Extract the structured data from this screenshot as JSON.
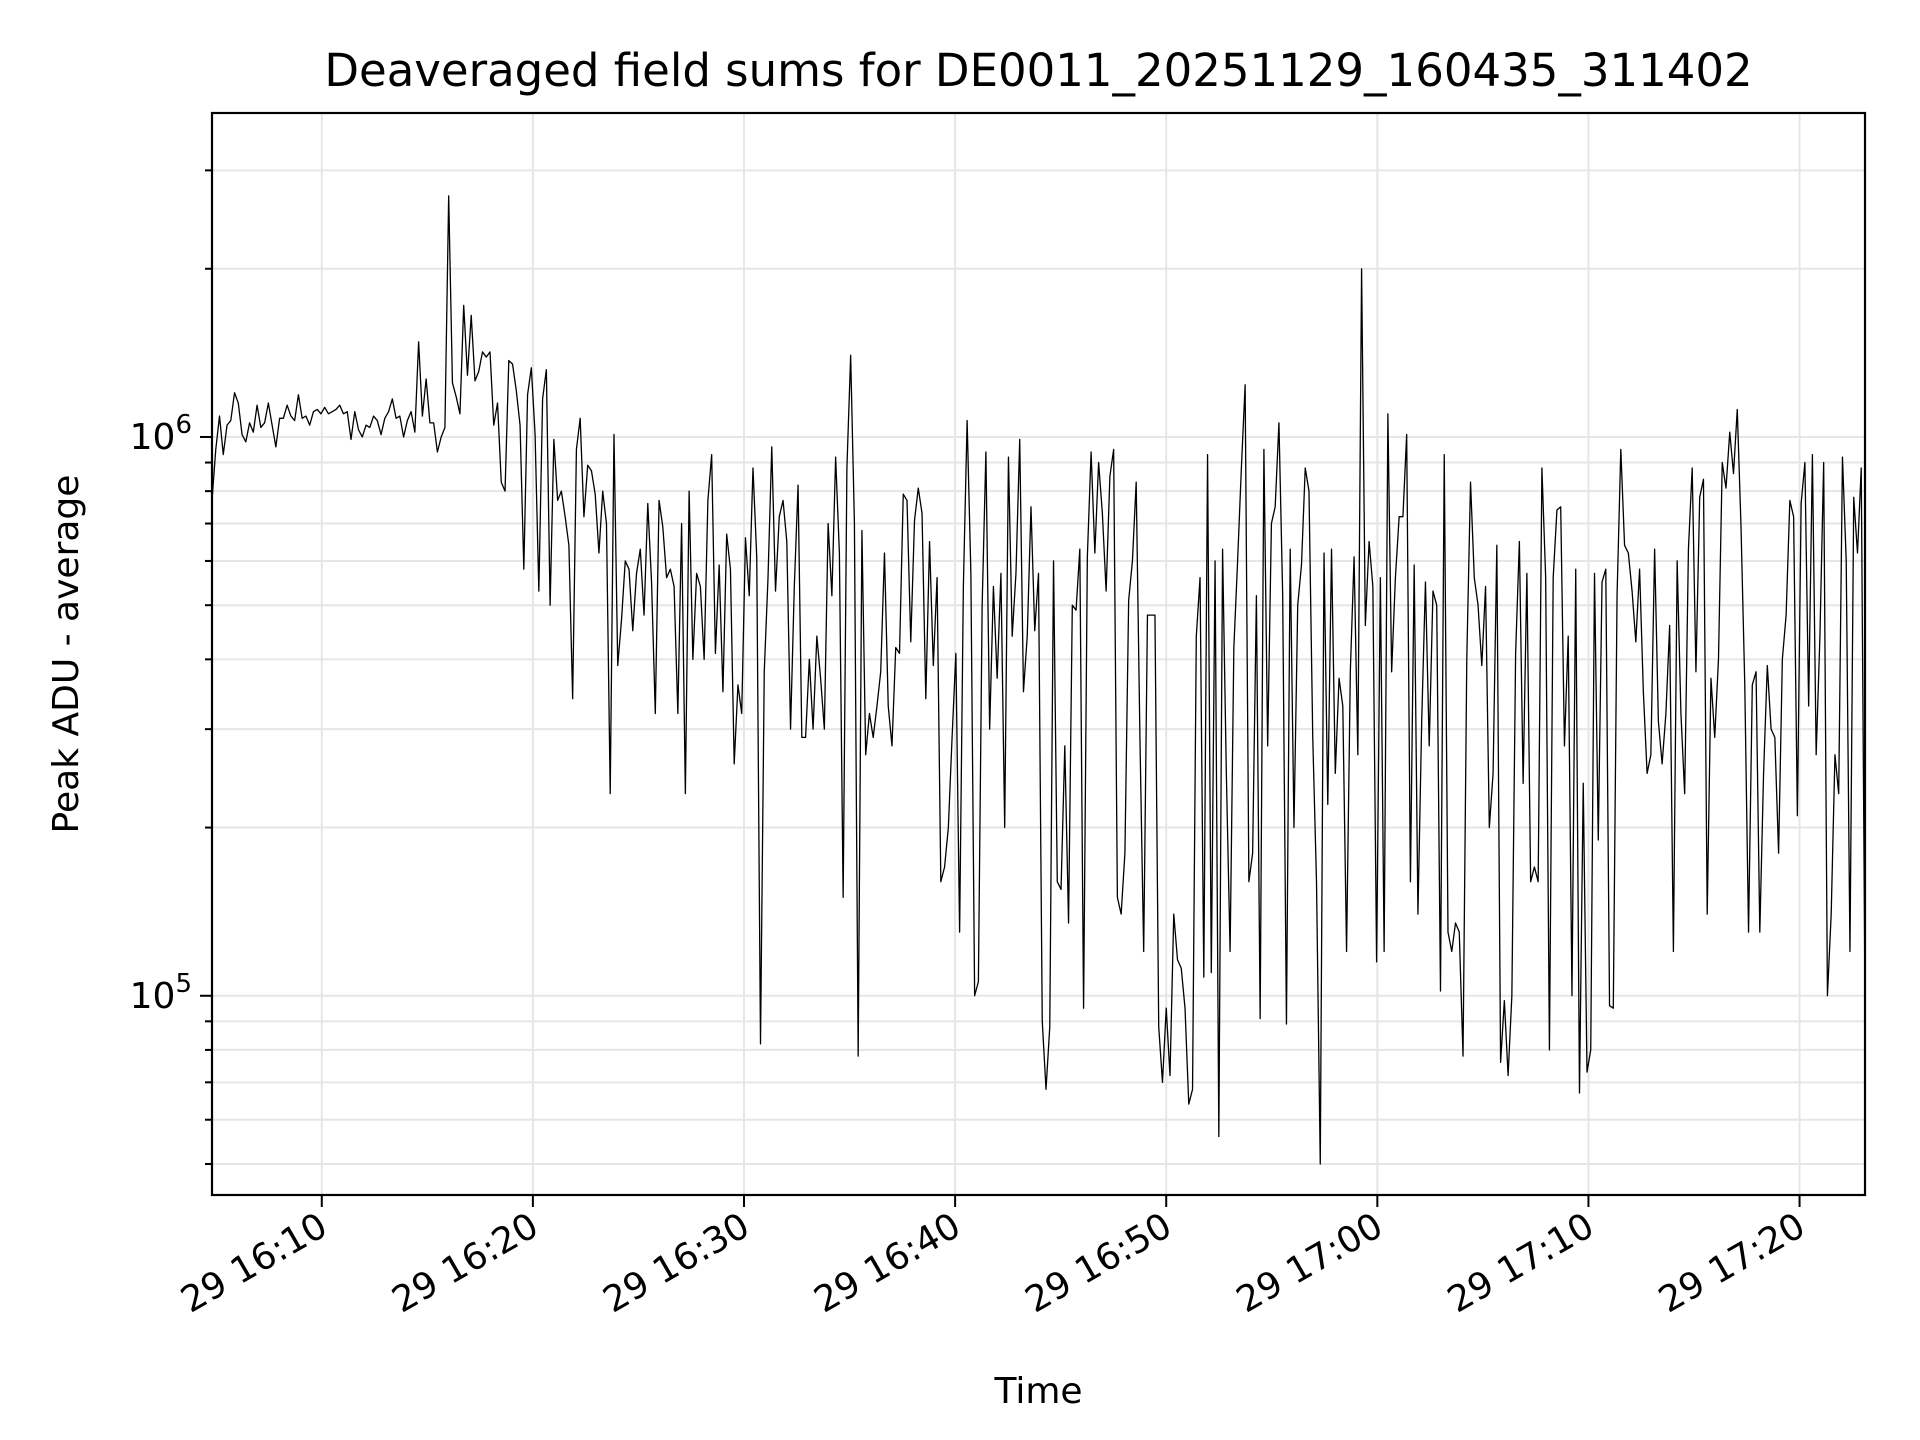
{
  "chart_data": {
    "type": "line",
    "title": "Deaveraged field sums for DE0011_20251129_160435_311402",
    "xlabel": "Time",
    "ylabel": "Peak ADU - average",
    "yscale": "log",
    "ylim": [
      44000,
      3800000
    ],
    "xlim_minutes": [
      4.8,
      83.1
    ],
    "grid": true,
    "x_ticks": [
      {
        "minute": 10,
        "label": "29 16:10"
      },
      {
        "minute": 20,
        "label": "29 16:20"
      },
      {
        "minute": 30,
        "label": "29 16:30"
      },
      {
        "minute": 40,
        "label": "29 16:40"
      },
      {
        "minute": 50,
        "label": "29 16:50"
      },
      {
        "minute": 60,
        "label": "29 17:00"
      },
      {
        "minute": 70,
        "label": "29 17:10"
      },
      {
        "minute": 80,
        "label": "29 17:20"
      }
    ],
    "y_major_ticks": [
      {
        "value": 100000,
        "base": "10",
        "exp": "5"
      },
      {
        "value": 1000000,
        "base": "10",
        "exp": "6"
      }
    ],
    "y_minor_ticks": [
      50000,
      60000,
      70000,
      80000,
      90000,
      200000,
      300000,
      400000,
      500000,
      600000,
      700000,
      800000,
      900000,
      2000000,
      3000000
    ],
    "series": [
      {
        "name": "Peak ADU - average",
        "color": "#000000",
        "x_start_minute": 4.8,
        "x_end_minute": 83.1,
        "values": [
          770000,
          950000,
          1090000,
          930000,
          1050000,
          1070000,
          1200000,
          1150000,
          1010000,
          980000,
          1060000,
          1020000,
          1140000,
          1040000,
          1060000,
          1150000,
          1050000,
          960000,
          1080000,
          1080000,
          1140000,
          1090000,
          1070000,
          1190000,
          1080000,
          1090000,
          1050000,
          1110000,
          1120000,
          1100000,
          1130000,
          1100000,
          1110000,
          1120000,
          1140000,
          1100000,
          1110000,
          990000,
          1110000,
          1030000,
          1000000,
          1050000,
          1040000,
          1090000,
          1070000,
          1010000,
          1080000,
          1110000,
          1170000,
          1080000,
          1090000,
          1000000,
          1070000,
          1110000,
          1020000,
          1480000,
          1090000,
          1270000,
          1060000,
          1060000,
          940000,
          1000000,
          1040000,
          2700000,
          1250000,
          1180000,
          1100000,
          1720000,
          1290000,
          1650000,
          1260000,
          1310000,
          1420000,
          1390000,
          1420000,
          1050000,
          1150000,
          830000,
          800000,
          1370000,
          1350000,
          1210000,
          1050000,
          580000,
          1190000,
          1330000,
          1010000,
          530000,
          1170000,
          1320000,
          500000,
          990000,
          770000,
          800000,
          720000,
          640000,
          340000,
          950000,
          1080000,
          720000,
          890000,
          870000,
          790000,
          620000,
          800000,
          700000,
          230000,
          1010000,
          390000,
          470000,
          600000,
          580000,
          450000,
          570000,
          630000,
          480000,
          760000,
          550000,
          320000,
          770000,
          690000,
          560000,
          580000,
          540000,
          320000,
          700000,
          230000,
          800000,
          400000,
          570000,
          540000,
          400000,
          770000,
          930000,
          410000,
          590000,
          350000,
          670000,
          580000,
          260000,
          360000,
          320000,
          660000,
          520000,
          880000,
          610000,
          82000,
          380000,
          560000,
          960000,
          530000,
          720000,
          770000,
          650000,
          300000,
          540000,
          820000,
          290000,
          290000,
          400000,
          300000,
          440000,
          370000,
          300000,
          700000,
          520000,
          920000,
          620000,
          150000,
          880000,
          1400000,
          700000,
          78000,
          680000,
          270000,
          320000,
          290000,
          330000,
          380000,
          620000,
          330000,
          280000,
          420000,
          410000,
          790000,
          770000,
          430000,
          710000,
          810000,
          730000,
          340000,
          650000,
          390000,
          560000,
          160000,
          170000,
          200000,
          290000,
          410000,
          130000,
          540000,
          1070000,
          570000,
          100000,
          106000,
          500000,
          940000,
          300000,
          540000,
          370000,
          570000,
          200000,
          920000,
          440000,
          570000,
          990000,
          350000,
          440000,
          750000,
          450000,
          570000,
          90000,
          68000,
          88000,
          600000,
          160000,
          155000,
          280000,
          135000,
          500000,
          490000,
          630000,
          95000,
          610000,
          940000,
          620000,
          900000,
          730000,
          530000,
          850000,
          950000,
          150000,
          140000,
          180000,
          510000,
          600000,
          830000,
          290000,
          120000,
          480000,
          480000,
          480000,
          88000,
          70000,
          95000,
          72000,
          140000,
          116000,
          112000,
          95000,
          64000,
          68000,
          440000,
          560000,
          108000,
          930000,
          110000,
          600000,
          56000,
          630000,
          250000,
          120000,
          420000,
          600000,
          880000,
          1240000,
          160000,
          180000,
          520000,
          91000,
          950000,
          280000,
          700000,
          750000,
          1060000,
          520000,
          89000,
          630000,
          200000,
          500000,
          590000,
          880000,
          800000,
          290000,
          160000,
          50000,
          620000,
          220000,
          630000,
          250000,
          370000,
          330000,
          120000,
          380000,
          610000,
          270000,
          2000000,
          460000,
          650000,
          540000,
          115000,
          560000,
          120000,
          1100000,
          380000,
          560000,
          720000,
          720000,
          1010000,
          160000,
          590000,
          140000,
          310000,
          550000,
          280000,
          530000,
          500000,
          102000,
          930000,
          130000,
          120000,
          135000,
          130000,
          78000,
          400000,
          830000,
          560000,
          500000,
          390000,
          540000,
          200000,
          250000,
          640000,
          76000,
          98000,
          72000,
          100000,
          410000,
          650000,
          240000,
          570000,
          160000,
          170000,
          160000,
          880000,
          560000,
          80000,
          560000,
          740000,
          750000,
          280000,
          440000,
          100000,
          580000,
          67000,
          240000,
          73000,
          80000,
          570000,
          190000,
          550000,
          580000,
          96000,
          95000,
          520000,
          950000,
          640000,
          620000,
          530000,
          430000,
          580000,
          350000,
          250000,
          270000,
          630000,
          310000,
          260000,
          320000,
          460000,
          120000,
          600000,
          320000,
          230000,
          630000,
          880000,
          380000,
          780000,
          840000,
          140000,
          370000,
          290000,
          400000,
          900000,
          810000,
          1020000,
          860000,
          1120000,
          690000,
          360000,
          130000,
          360000,
          380000,
          130000,
          250000,
          390000,
          300000,
          290000,
          180000,
          400000,
          480000,
          770000,
          720000,
          210000,
          760000,
          900000,
          330000,
          930000,
          270000,
          440000,
          900000,
          100000,
          140000,
          270000,
          230000,
          920000,
          600000,
          120000,
          780000,
          620000,
          880000,
          100000
        ]
      }
    ]
  }
}
